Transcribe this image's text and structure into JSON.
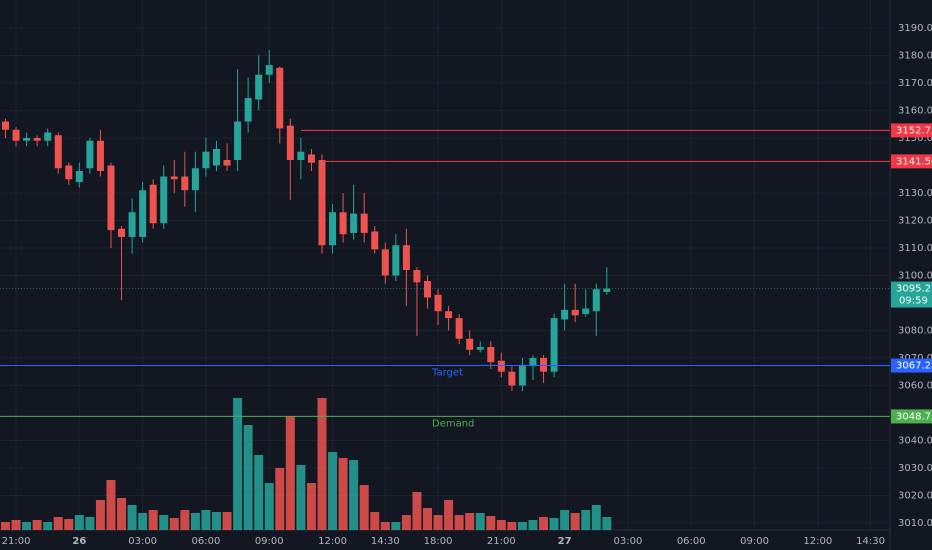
{
  "chart_data": {
    "type": "candlestick",
    "up_color": "#26a69a",
    "down_color": "#ef5350",
    "x": [
      -1,
      0,
      1,
      2,
      3,
      4,
      5,
      6,
      7,
      8,
      9,
      10,
      11,
      12,
      13,
      14,
      15,
      16,
      17,
      18,
      19,
      20,
      21,
      22,
      23,
      24,
      25,
      26,
      27,
      28,
      29,
      30,
      31,
      32,
      33,
      34,
      35,
      36,
      37,
      38,
      39,
      40,
      41,
      42,
      43,
      44,
      45,
      46,
      47,
      48,
      49,
      50,
      51,
      52,
      53,
      54,
      55,
      56
    ],
    "open": [
      3156,
      3153,
      3149,
      3150,
      3149,
      3151,
      3140,
      3134,
      3139,
      3149,
      3140,
      3117,
      3114,
      3114,
      3133,
      3119,
      3136,
      3136,
      3131,
      3139,
      3140,
      3142,
      3142,
      3156,
      3164,
      3173,
      3175.5,
      3154.5,
      3142,
      3144,
      3142,
      3111,
      3123,
      3115.5,
      3122.5,
      3116,
      3109.5,
      3100,
      3111,
      3102,
      3098,
      3093,
      3087,
      3084.5,
      3077,
      3073,
      3074,
      3069,
      3065,
      3060,
      3067,
      3070,
      3065,
      3084,
      3087.5,
      3086,
      3087,
      3094
    ],
    "high": [
      3157,
      3154,
      3152,
      3151,
      3153.5,
      3152,
      3141,
      3141,
      3150,
      3153,
      3141,
      3118,
      3128,
      3134,
      3135,
      3140,
      3142,
      3145,
      3145,
      3150,
      3149,
      3148,
      3175,
      3172,
      3180,
      3182,
      3176,
      3157,
      3150,
      3146,
      3144,
      3126,
      3130,
      3133,
      3130,
      3118,
      3112,
      3115,
      3117,
      3103,
      3100,
      3095,
      3089,
      3086,
      3080,
      3076,
      3076,
      3072,
      3067,
      3070,
      3071,
      3071,
      3086,
      3097,
      3097,
      3095,
      3097,
      3103
    ],
    "low": [
      3150,
      3147,
      3147,
      3147,
      3147,
      3137,
      3133,
      3132,
      3137,
      3136,
      3110,
      3091,
      3108,
      3112,
      3117,
      3117,
      3130,
      3125,
      3123,
      3136,
      3138,
      3138,
      3138,
      3152,
      3160,
      3170,
      3148,
      3127.5,
      3135,
      3138,
      3108,
      3108,
      3112,
      3113,
      3112,
      3108,
      3097,
      3098,
      3089,
      3078,
      3088,
      3082,
      3080,
      3075,
      3071,
      3072,
      3066,
      3063,
      3058,
      3058,
      3062,
      3061,
      3063,
      3080,
      3083,
      3085,
      3078,
      3093
    ],
    "close": [
      3153,
      3149,
      3150,
      3149,
      3152,
      3139,
      3135,
      3138,
      3149,
      3138,
      3116.5,
      3114,
      3123,
      3131,
      3119,
      3136,
      3135,
      3131,
      3139,
      3145,
      3146,
      3140,
      3156,
      3164.5,
      3173,
      3176.5,
      3153.5,
      3142,
      3145,
      3141,
      3111,
      3123,
      3115,
      3122.5,
      3115.5,
      3109.5,
      3100,
      3111,
      3102,
      3097.5,
      3092,
      3087,
      3084.5,
      3077,
      3073,
      3074,
      3068.5,
      3065,
      3060,
      3067.5,
      3070,
      3065,
      3084.5,
      3087.5,
      3085.5,
      3088,
      3095,
      3095.25
    ],
    "volume": [
      8,
      10,
      8,
      10,
      8,
      13,
      11,
      15,
      13,
      30,
      50,
      32,
      25,
      17,
      20,
      15,
      12,
      20,
      17,
      20,
      18,
      18,
      132,
      105,
      75,
      47,
      62,
      114,
      65,
      47,
      132,
      78,
      72,
      70,
      45,
      18,
      8,
      8,
      15,
      38,
      22,
      15,
      30,
      15,
      17,
      17,
      14,
      10,
      8,
      8,
      10,
      13,
      12,
      20,
      17,
      20,
      25,
      13
    ],
    "xlim": [
      -1.52,
      82.84
    ],
    "ylim": [
      3007.45,
      3200.18
    ],
    "xticks": [
      {
        "value": 0,
        "label": "21:00"
      },
      {
        "value": 6,
        "label": "26",
        "bold": true
      },
      {
        "value": 12,
        "label": "03:00"
      },
      {
        "value": 18,
        "label": "06:00"
      },
      {
        "value": 24,
        "label": "09:00"
      },
      {
        "value": 30,
        "label": "12:00"
      },
      {
        "value": 35,
        "label": "14:30"
      },
      {
        "value": 40,
        "label": "18:00"
      },
      {
        "value": 46,
        "label": "21:00"
      },
      {
        "value": 52,
        "label": "27",
        "bold": true
      },
      {
        "value": 58,
        "label": "03:00"
      },
      {
        "value": 64,
        "label": "06:00"
      },
      {
        "value": 70,
        "label": "09:00"
      },
      {
        "value": 76,
        "label": "12:00"
      },
      {
        "value": 81,
        "label": "14:30"
      }
    ],
    "yticks": [
      {
        "value": 3190,
        "label": "3190.00"
      },
      {
        "value": 3180,
        "label": "3180.00"
      },
      {
        "value": 3170,
        "label": "3170.00"
      },
      {
        "value": 3160,
        "label": "3160.00"
      },
      {
        "value": 3150,
        "label": "3150.00"
      },
      {
        "value": 3130,
        "label": "3130.00"
      },
      {
        "value": 3120,
        "label": "3120.00"
      },
      {
        "value": 3110,
        "label": "3110.00"
      },
      {
        "value": 3100,
        "label": "3100.00"
      },
      {
        "value": 3080,
        "label": "3080.00"
      },
      {
        "value": 3070,
        "label": "3070.00"
      },
      {
        "value": 3060,
        "label": "3060.00"
      },
      {
        "value": 3040,
        "label": "3040.00"
      },
      {
        "value": 3030,
        "label": "3030.00"
      },
      {
        "value": 3020,
        "label": "3020.00"
      },
      {
        "value": 3010,
        "label": "3010.00"
      }
    ],
    "grid": true,
    "levels": [
      {
        "value": 3152.75,
        "color": "#f23645",
        "from": 27
      },
      {
        "value": 3141.5,
        "label": "3141.50",
        "color": "#f23645",
        "from": 29
      },
      {
        "value": 3067.25,
        "name": "Target",
        "color": "#2962ff"
      },
      {
        "value": 3048.75,
        "name": "Demand",
        "color": "#4caf50"
      }
    ],
    "last_price": 3095.25,
    "countdown": "09:59"
  }
}
